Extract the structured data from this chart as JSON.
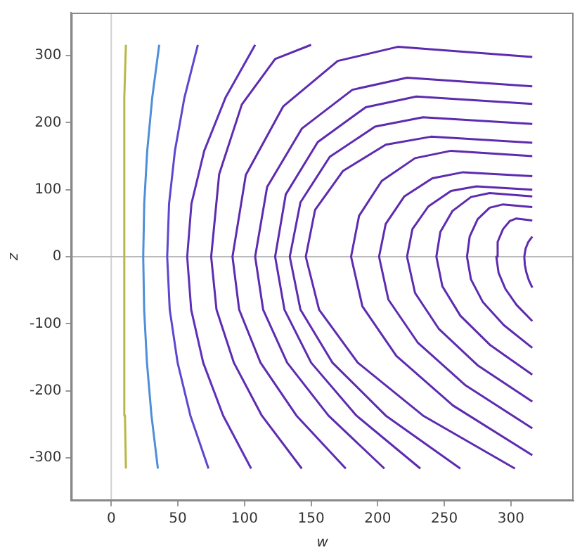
{
  "chart_data": {
    "type": "line",
    "xlabel": "w",
    "ylabel": "z",
    "xlim": [
      -30,
      347
    ],
    "ylim": [
      -364,
      364
    ],
    "xticks": [
      0,
      50,
      100,
      150,
      200,
      250,
      300
    ],
    "yticks": [
      -300,
      -200,
      -100,
      0,
      100,
      200,
      300
    ],
    "grid": false,
    "legend": false,
    "marker": "none",
    "line_style": "solid",
    "ref_lines": [
      {
        "axis": "x",
        "value": 0,
        "color": "#d0d0d0"
      },
      {
        "axis": "y",
        "value": 0,
        "color": "#bababa"
      }
    ],
    "series": [
      {
        "color": "#b8b846",
        "x": [
          11,
          10.3,
          9.9,
          9.6,
          9.5,
          9.6,
          9.9,
          10.3,
          11
        ],
        "values": [
          -316,
          -237,
          -158,
          -79,
          0,
          79,
          158,
          237,
          316
        ]
      },
      {
        "color": "#4d8fd8",
        "x": [
          35,
          30.2,
          26.8,
          24.7,
          24,
          24.75,
          27,
          30.75,
          36
        ],
        "values": [
          -316,
          -237,
          -158,
          -79,
          0,
          79,
          158,
          237,
          316
        ]
      },
      {
        "color": "#5a48d0",
        "x": [
          73,
          59.4,
          49.8,
          43.9,
          42,
          43.4,
          47.8,
          54.9,
          65
        ],
        "values": [
          -316,
          -237,
          -158,
          -79,
          0,
          79,
          158,
          237,
          316
        ]
      },
      {
        "color": "#5e30b8",
        "x": [
          105,
          84,
          69,
          60,
          57,
          60.2,
          69.8,
          85.7,
          108
        ],
        "values": [
          -316,
          -237,
          -158,
          -79,
          0,
          79,
          158,
          237,
          316
        ]
      },
      {
        "color": "#5e2bb0",
        "x": [
          143,
          113,
          92,
          79,
          75,
          81,
          98,
          123,
          150
        ],
        "values": [
          -316,
          -237,
          -158,
          -79,
          0,
          123,
          227,
          295,
          316
        ]
      },
      {
        "color": "#5e2bb0",
        "x": [
          176,
          139,
          112,
          96,
          91,
          101,
          129,
          170,
          215,
          316
        ],
        "values": [
          -316,
          -237,
          -158,
          -79,
          0,
          122,
          224,
          292,
          313,
          298
        ]
      },
      {
        "color": "#5e2bb0",
        "x": [
          205,
          163,
          132,
          114,
          108,
          117,
          143,
          181,
          222,
          316
        ],
        "values": [
          -316,
          -237,
          -158,
          -79,
          0,
          104,
          191,
          249,
          267,
          254
        ]
      },
      {
        "color": "#5e2bb0",
        "x": [
          232,
          184,
          150,
          130,
          123,
          131,
          155,
          191,
          229,
          316
        ],
        "values": [
          -316,
          -237,
          -158,
          -79,
          0,
          93,
          171,
          223,
          239,
          228
        ]
      },
      {
        "color": "#5e2bb0",
        "x": [
          262,
          206,
          166,
          142,
          134,
          142,
          164,
          198,
          234,
          316
        ],
        "values": [
          -316,
          -237,
          -158,
          -79,
          0,
          81,
          149,
          194,
          208,
          198
        ]
      },
      {
        "color": "#5e2bb0",
        "x": [
          303,
          234,
          185,
          156,
          146,
          153,
          174,
          206,
          240,
          316
        ],
        "values": [
          -316,
          -237,
          -158,
          -79,
          0,
          70,
          128,
          167,
          179,
          170
        ]
      },
      {
        "color": "#5e2bb0",
        "x": [
          316,
          256.5,
          214,
          188.5,
          180,
          186,
          203,
          228,
          255,
          316
        ],
        "values": [
          -296,
          -222,
          -148,
          -74,
          0,
          61,
          113,
          147,
          158,
          150
        ]
      },
      {
        "color": "#5e2bb0",
        "x": [
          316,
          266,
          230,
          208,
          201,
          206,
          220,
          241,
          264,
          316
        ],
        "values": [
          -256,
          -192,
          -128,
          -64,
          0,
          49,
          90,
          117,
          126,
          120
        ]
      },
      {
        "color": "#5e2bb0",
        "x": [
          316,
          275,
          246,
          228,
          222,
          226,
          238,
          255,
          274,
          316
        ],
        "values": [
          -216,
          -162,
          -108,
          -54,
          0,
          41,
          75,
          98,
          105,
          100
        ]
      },
      {
        "color": "#5e2bb0",
        "x": [
          316,
          284.5,
          262,
          248.5,
          244,
          247,
          256,
          270,
          284,
          316
        ],
        "values": [
          -176,
          -132,
          -88,
          -44,
          0,
          37,
          68,
          89,
          95,
          90
        ]
      },
      {
        "color": "#5e2bb0",
        "x": [
          316,
          294.6,
          279,
          270,
          267,
          269,
          275,
          284,
          294,
          316
        ],
        "values": [
          -136,
          -102,
          -68,
          -34,
          0,
          30,
          56,
          73,
          78,
          74
        ]
      },
      {
        "color": "#5e2bb0",
        "x": [
          316,
          304.2,
          295.8,
          290.7,
          289,
          290,
          294,
          299,
          304,
          316
        ],
        "values": [
          -96,
          -72,
          -48,
          -24,
          0,
          22,
          41,
          53,
          57,
          54
        ]
      },
      {
        "color": "#5e2bb0",
        "x": [
          316,
          313.4,
          311.5,
          310.4,
          310,
          311,
          313,
          316
        ],
        "values": [
          -46,
          -35,
          -23,
          -12,
          0,
          12,
          22,
          30
        ]
      }
    ]
  }
}
